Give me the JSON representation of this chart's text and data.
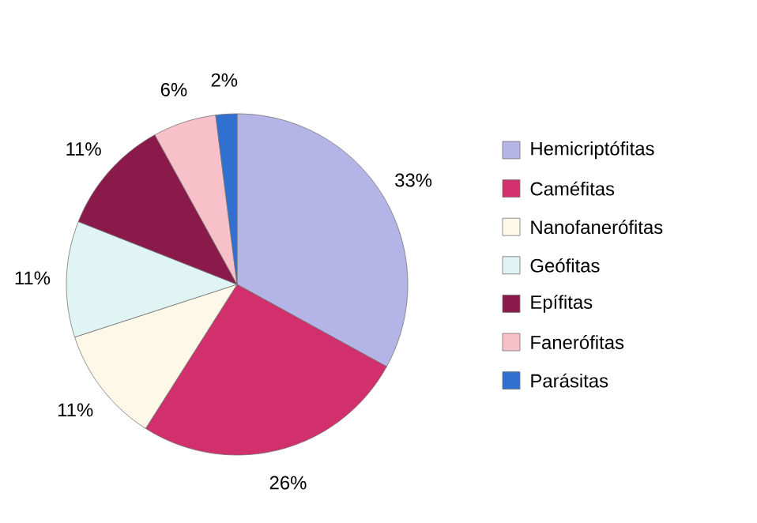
{
  "chart_data": {
    "type": "pie",
    "categories": [
      "Hemicriptófitas",
      "Caméfitas",
      "Nanofanerófitas",
      "Geófitas",
      "Epífitas",
      "Fanerófitas",
      "Parásitas"
    ],
    "values": [
      33,
      26,
      11,
      11,
      11,
      6,
      2
    ],
    "value_labels": [
      "33%",
      "26%",
      "11%",
      "11%",
      "11%",
      "6%",
      "2%"
    ],
    "colors": [
      "#b4b4e6",
      "#d2306c",
      "#fdf8e8",
      "#e0f4f4",
      "#8a1a4a",
      "#f8c0c8",
      "#3070d0"
    ],
    "legend": "right"
  }
}
